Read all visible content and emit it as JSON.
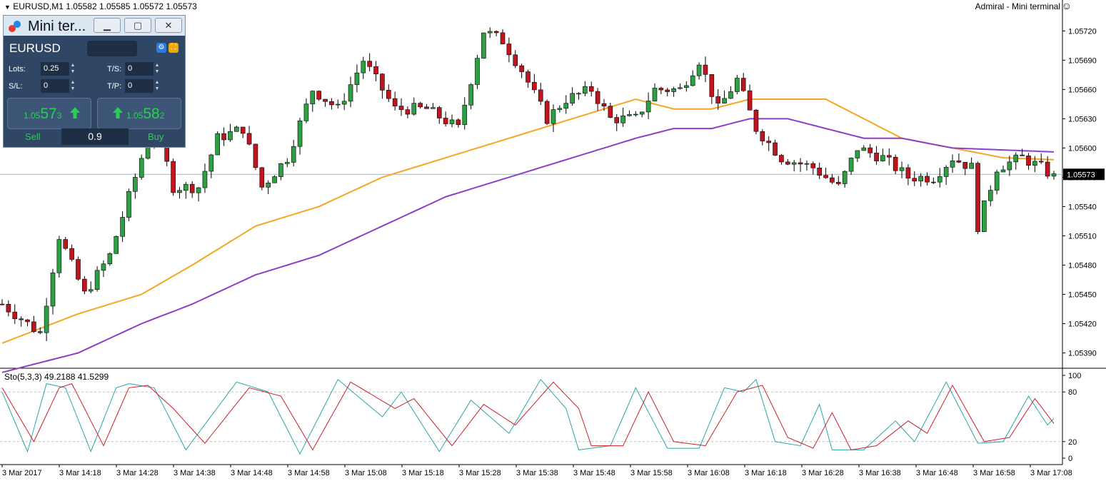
{
  "header": {
    "symbol_info": "EURUSD,M1  1.05582 1.05585 1.05572 1.05573",
    "right_title": "Admiral - Mini terminal"
  },
  "mini_terminal": {
    "title": "Mini ter...",
    "symbol": "EURUSD",
    "lots_label": "Lots:",
    "lots_value": "0.25",
    "ts_label": "T/S:",
    "ts_value": "0",
    "sl_label": "S/L:",
    "sl_value": "0",
    "tp_label": "T/P:",
    "tp_value": "0",
    "sell_price_small": "1.05",
    "sell_price_big": "57",
    "sell_price_sup": "3",
    "buy_price_small": "1.05",
    "buy_price_big": "58",
    "buy_price_sup": "2",
    "sell_label": "Sell",
    "buy_label": "Buy",
    "spread": "0.9",
    "colors": {
      "panel": "#2f4664",
      "price": "#26d14f"
    }
  },
  "chart_data": [
    {
      "type": "candlestick",
      "symbol": "EURUSD",
      "timeframe": "M1",
      "ylim": [
        1.05375,
        1.0574
      ],
      "yticks": [
        "1.05720",
        "1.05690",
        "1.05660",
        "1.05630",
        "1.05600",
        "1.05570",
        "1.05540",
        "1.05510",
        "1.05480",
        "1.05450",
        "1.05420",
        "1.05390"
      ],
      "ytick_values": [
        1.0572,
        1.0569,
        1.0566,
        1.0563,
        1.056,
        1.0557,
        1.0554,
        1.0551,
        1.0548,
        1.0545,
        1.0542,
        1.0539
      ],
      "xticks": [
        "3 Mar 2017",
        "3 Mar 14:18",
        "3 Mar 14:28",
        "3 Mar 14:38",
        "3 Mar 14:48",
        "3 Mar 14:58",
        "3 Mar 15:08",
        "3 Mar 15:18",
        "3 Mar 15:28",
        "3 Mar 15:38",
        "3 Mar 15:48",
        "3 Mar 15:58",
        "3 Mar 16:08",
        "3 Mar 16:18",
        "3 Mar 16:28",
        "3 Mar 16:38",
        "3 Mar 16:48",
        "3 Mar 16:58",
        "3 Mar 17:08"
      ],
      "current_price": 1.05573,
      "current_price_label": "1.05573",
      "colors": {
        "up": "#2ea043",
        "down": "#c0151c",
        "ma_fast": "#f5a623",
        "ma_slow": "#8b3fc9",
        "price_line": "#a7b5bf"
      },
      "anchors": [
        [
          0,
          1.0544
        ],
        [
          6,
          1.0541
        ],
        [
          9,
          1.0551
        ],
        [
          13,
          1.0545
        ],
        [
          17,
          1.0549
        ],
        [
          20,
          1.0555
        ],
        [
          24,
          1.0563
        ],
        [
          27,
          1.0556
        ],
        [
          31,
          1.0556
        ],
        [
          34,
          1.0561
        ],
        [
          38,
          1.0562
        ],
        [
          41,
          1.0556
        ],
        [
          45,
          1.0559
        ],
        [
          49,
          1.0566
        ],
        [
          53,
          1.0564
        ],
        [
          57,
          1.0569
        ],
        [
          62,
          1.0564
        ],
        [
          67,
          1.0564
        ],
        [
          72,
          1.0562
        ],
        [
          76,
          1.0572
        ],
        [
          79,
          1.0571
        ],
        [
          82,
          1.0568
        ],
        [
          86,
          1.0563
        ],
        [
          89,
          1.0565
        ],
        [
          93,
          1.0566
        ],
        [
          96,
          1.0563
        ],
        [
          100,
          1.0563
        ],
        [
          103,
          1.0566
        ],
        [
          107,
          1.0566
        ],
        [
          110,
          1.0569
        ],
        [
          113,
          1.0564
        ],
        [
          116,
          1.0567
        ],
        [
          119,
          1.0562
        ],
        [
          123,
          1.0559
        ],
        [
          128,
          1.0558
        ],
        [
          132,
          1.0556
        ],
        [
          135,
          1.056
        ],
        [
          139,
          1.0559
        ],
        [
          143,
          1.0557
        ],
        [
          147,
          1.0557
        ],
        [
          150,
          1.0559
        ],
        [
          153,
          1.0558
        ],
        [
          154,
          1.0552
        ],
        [
          157,
          1.0558
        ],
        [
          161,
          1.0559
        ],
        [
          164,
          1.0558
        ],
        [
          166,
          1.0557
        ]
      ],
      "ma_fast": [
        [
          0,
          1.054
        ],
        [
          12,
          1.0543
        ],
        [
          22,
          1.0545
        ],
        [
          30,
          1.0548
        ],
        [
          40,
          1.0552
        ],
        [
          50,
          1.0554
        ],
        [
          60,
          1.0557
        ],
        [
          70,
          1.0559
        ],
        [
          80,
          1.0561
        ],
        [
          90,
          1.0563
        ],
        [
          100,
          1.0565
        ],
        [
          106,
          1.0564
        ],
        [
          112,
          1.0564
        ],
        [
          118,
          1.0565
        ],
        [
          124,
          1.0565
        ],
        [
          130,
          1.0565
        ],
        [
          136,
          1.0563
        ],
        [
          142,
          1.0561
        ],
        [
          150,
          1.056
        ],
        [
          158,
          1.0559
        ],
        [
          166,
          1.05588
        ]
      ],
      "ma_slow": [
        [
          0,
          1.0537
        ],
        [
          12,
          1.0539
        ],
        [
          22,
          1.0542
        ],
        [
          30,
          1.0544
        ],
        [
          40,
          1.0547
        ],
        [
          50,
          1.0549
        ],
        [
          60,
          1.0552
        ],
        [
          70,
          1.0555
        ],
        [
          80,
          1.0557
        ],
        [
          90,
          1.0559
        ],
        [
          100,
          1.0561
        ],
        [
          106,
          1.0562
        ],
        [
          112,
          1.0562
        ],
        [
          118,
          1.0563
        ],
        [
          124,
          1.0563
        ],
        [
          130,
          1.0562
        ],
        [
          136,
          1.0561
        ],
        [
          142,
          1.0561
        ],
        [
          150,
          1.056
        ],
        [
          158,
          1.05598
        ],
        [
          166,
          1.05596
        ]
      ]
    },
    {
      "type": "line",
      "title": "Sto(5,3,3) 49.2188 41.5299",
      "ylim": [
        0,
        100
      ],
      "yticks": [
        "100",
        "80",
        "20",
        "0"
      ],
      "ytick_values": [
        100,
        80,
        20,
        0
      ],
      "levels": [
        80,
        20
      ],
      "series": [
        {
          "color": "#2aa7a5",
          "points": [
            [
              0,
              80
            ],
            [
              4,
              8
            ],
            [
              7,
              90
            ],
            [
              10,
              85
            ],
            [
              14,
              8
            ],
            [
              18,
              85
            ],
            [
              20,
              90
            ],
            [
              24,
              85
            ],
            [
              29,
              10
            ],
            [
              37,
              92
            ],
            [
              42,
              80
            ],
            [
              47,
              5
            ],
            [
              53,
              95
            ],
            [
              60,
              50
            ],
            [
              63,
              80
            ],
            [
              69,
              8
            ],
            [
              74,
              70
            ],
            [
              80,
              30
            ],
            [
              85,
              95
            ],
            [
              89,
              60
            ],
            [
              91,
              10
            ],
            [
              96,
              15
            ],
            [
              100,
              85
            ],
            [
              105,
              12
            ],
            [
              110,
              12
            ],
            [
              114,
              85
            ],
            [
              117,
              80
            ],
            [
              119,
              95
            ],
            [
              122,
              20
            ],
            [
              126,
              15
            ],
            [
              129,
              65
            ],
            [
              131,
              10
            ],
            [
              136,
              10
            ],
            [
              141,
              45
            ],
            [
              144,
              20
            ],
            [
              149,
              92
            ],
            [
              154,
              18
            ],
            [
              158,
              20
            ],
            [
              162,
              75
            ],
            [
              165,
              40
            ],
            [
              166,
              48
            ]
          ]
        },
        {
          "color": "#cc1f2a",
          "points": [
            [
              0,
              85
            ],
            [
              5,
              20
            ],
            [
              9,
              85
            ],
            [
              11,
              90
            ],
            [
              16,
              15
            ],
            [
              20,
              85
            ],
            [
              23,
              88
            ],
            [
              27,
              60
            ],
            [
              32,
              18
            ],
            [
              39,
              85
            ],
            [
              44,
              75
            ],
            [
              49,
              10
            ],
            [
              55,
              92
            ],
            [
              62,
              60
            ],
            [
              65,
              72
            ],
            [
              71,
              15
            ],
            [
              76,
              65
            ],
            [
              81,
              40
            ],
            [
              87,
              92
            ],
            [
              91,
              60
            ],
            [
              93,
              15
            ],
            [
              98,
              15
            ],
            [
              102,
              80
            ],
            [
              106,
              20
            ],
            [
              111,
              15
            ],
            [
              116,
              80
            ],
            [
              120,
              88
            ],
            [
              124,
              25
            ],
            [
              128,
              12
            ],
            [
              131,
              55
            ],
            [
              134,
              10
            ],
            [
              138,
              15
            ],
            [
              143,
              45
            ],
            [
              146,
              30
            ],
            [
              150,
              88
            ],
            [
              155,
              20
            ],
            [
              159,
              25
            ],
            [
              163,
              72
            ],
            [
              166,
              42
            ]
          ]
        }
      ]
    }
  ]
}
